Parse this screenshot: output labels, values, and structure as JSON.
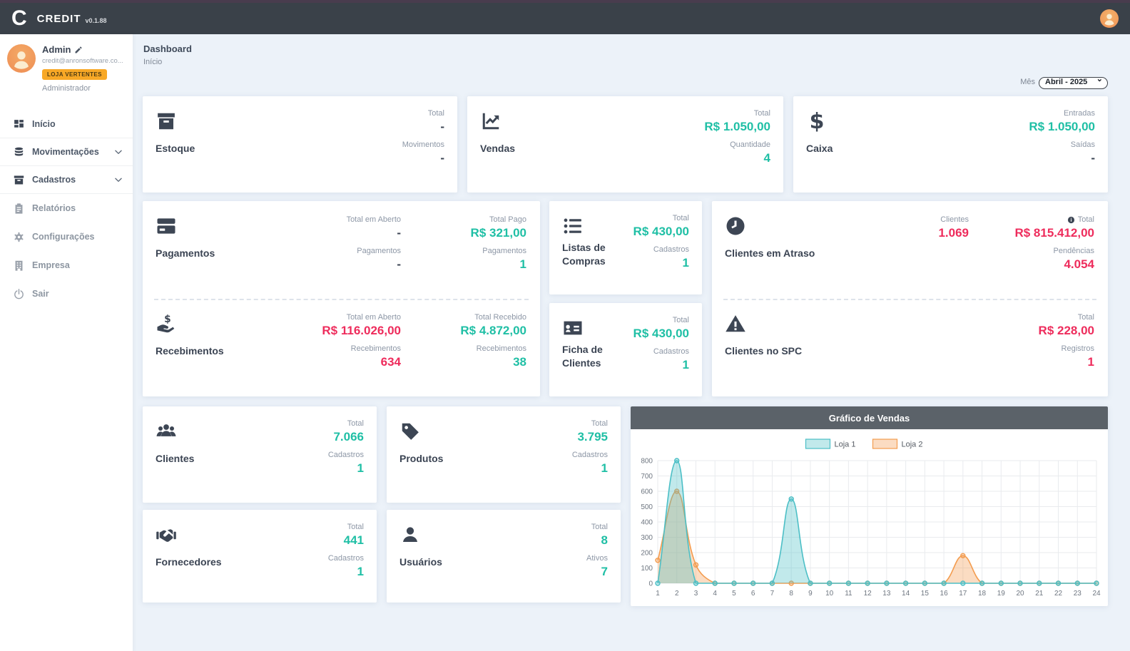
{
  "topbar": {
    "logo_letter": "C",
    "brand": "CREDIT",
    "version": "v0.1.88"
  },
  "user": {
    "name": "Admin",
    "email": "credit@anronsoftware.co...",
    "store_badge": "LOJA VERTENTES",
    "role": "Administrador"
  },
  "sidebar": {
    "items": [
      {
        "id": "inicio",
        "label": "Início",
        "icon": "grid-icon",
        "expandable": false,
        "muted": false
      },
      {
        "id": "movimentacoes",
        "label": "Movimentações",
        "icon": "database-icon",
        "expandable": true,
        "muted": false
      },
      {
        "id": "cadastros",
        "label": "Cadastros",
        "icon": "archive-icon",
        "expandable": true,
        "muted": false
      },
      {
        "id": "relatorios",
        "label": "Relatórios",
        "icon": "clipboard-icon",
        "expandable": false,
        "muted": true
      },
      {
        "id": "configuracoes",
        "label": "Configurações",
        "icon": "gear-icon",
        "expandable": false,
        "muted": true
      },
      {
        "id": "empresa",
        "label": "Empresa",
        "icon": "building-icon",
        "expandable": false,
        "muted": true
      },
      {
        "id": "sair",
        "label": "Sair",
        "icon": "power-icon",
        "expandable": false,
        "muted": true
      }
    ]
  },
  "header": {
    "title": "Dashboard",
    "breadcrumb": "Início"
  },
  "filters": {
    "month_label": "Mês",
    "month_value": "Abril - 2025"
  },
  "colors": {
    "green": "#1fbfa5",
    "red": "#ee2c5c",
    "badge_orange": "#f8a826",
    "loja1": "#4cbfc6",
    "loja2": "#f39c4f"
  },
  "cards": {
    "estoque": {
      "title": "Estoque",
      "icon": "box-icon",
      "stats": [
        {
          "label": "Total",
          "value": "-"
        },
        {
          "label": "Movimentos",
          "value": "-"
        }
      ]
    },
    "vendas": {
      "title": "Vendas",
      "icon": "chart-line-icon",
      "stats": [
        {
          "label": "Total",
          "value": "R$ 1.050,00"
        },
        {
          "label": "Quantidade",
          "value": "4"
        }
      ]
    },
    "caixa": {
      "title": "Caixa",
      "icon": "dollar-icon",
      "stats": [
        {
          "label": "Entradas",
          "value": "R$ 1.050,00"
        },
        {
          "label": "Saídas",
          "value": "-"
        }
      ]
    },
    "pagamentos": {
      "title": "Pagamentos",
      "icon": "credit-card-icon",
      "cols": [
        [
          {
            "label": "Total em Aberto",
            "value": "-"
          },
          {
            "label": "Pagamentos",
            "value": "-"
          }
        ],
        [
          {
            "label": "Total Pago",
            "value": "R$ 321,00"
          },
          {
            "label": "Pagamentos",
            "value": "1"
          }
        ]
      ]
    },
    "recebimentos": {
      "title": "Recebimentos",
      "icon": "hand-dollar-icon",
      "cols": [
        [
          {
            "label": "Total em Aberto",
            "value": "R$ 116.026,00"
          },
          {
            "label": "Recebimentos",
            "value": "634"
          }
        ],
        [
          {
            "label": "Total Recebido",
            "value": "R$ 4.872,00"
          },
          {
            "label": "Recebimentos",
            "value": "38"
          }
        ]
      ]
    },
    "listas": {
      "title": "Listas de Compras",
      "icon": "list-icon",
      "stats": [
        {
          "label": "Total",
          "value": "R$ 430,00"
        },
        {
          "label": "Cadastros",
          "value": "1"
        }
      ]
    },
    "ficha": {
      "title": "Ficha de Clientes",
      "icon": "id-card-icon",
      "stats": [
        {
          "label": "Total",
          "value": "R$ 430,00"
        },
        {
          "label": "Cadastros",
          "value": "1"
        }
      ]
    },
    "atraso": {
      "title": "Clientes em Atraso",
      "icon": "clock-icon",
      "cols": [
        [
          {
            "label": "Clientes",
            "value": "1.069"
          }
        ],
        [
          {
            "label": "Total",
            "value": "R$ 815.412,00"
          },
          {
            "label": "Pendências",
            "value": "4.054"
          }
        ]
      ]
    },
    "spc": {
      "title": "Clientes no SPC",
      "icon": "warning-icon",
      "cols": [
        [],
        [
          {
            "label": "Total",
            "value": "R$ 228,00"
          },
          {
            "label": "Registros",
            "value": "1"
          }
        ]
      ]
    },
    "clientes": {
      "title": "Clientes",
      "icon": "users-icon",
      "stats": [
        {
          "label": "Total",
          "value": "7.066"
        },
        {
          "label": "Cadastros",
          "value": "1"
        }
      ]
    },
    "produtos": {
      "title": "Produtos",
      "icon": "tag-icon",
      "stats": [
        {
          "label": "Total",
          "value": "3.795"
        },
        {
          "label": "Cadastros",
          "value": "1"
        }
      ]
    },
    "fornecedores": {
      "title": "Fornecedores",
      "icon": "handshake-icon",
      "stats": [
        {
          "label": "Total",
          "value": "441"
        },
        {
          "label": "Cadastros",
          "value": "1"
        }
      ]
    },
    "usuarios": {
      "title": "Usuários",
      "icon": "user-icon",
      "stats": [
        {
          "label": "Total",
          "value": "8"
        },
        {
          "label": "Ativos",
          "value": "7"
        }
      ]
    }
  },
  "chart_data": {
    "type": "area",
    "title": "Gráfico de Vendas",
    "x": [
      1,
      2,
      3,
      4,
      5,
      6,
      7,
      8,
      9,
      10,
      11,
      12,
      13,
      14,
      15,
      16,
      17,
      18,
      19,
      20,
      21,
      22,
      23,
      24
    ],
    "series": [
      {
        "name": "Loja 1",
        "color": "#4cbfc6",
        "fill": "rgba(76,191,198,0.35)",
        "values": [
          0,
          800,
          0,
          0,
          0,
          0,
          0,
          550,
          0,
          0,
          0,
          0,
          0,
          0,
          0,
          0,
          0,
          0,
          0,
          0,
          0,
          0,
          0,
          0
        ]
      },
      {
        "name": "Loja 2",
        "color": "#f39c4f",
        "fill": "rgba(243,156,79,0.35)",
        "values": [
          150,
          600,
          120,
          0,
          0,
          0,
          0,
          0,
          0,
          0,
          0,
          0,
          0,
          0,
          0,
          0,
          180,
          0,
          0,
          0,
          0,
          0,
          0,
          0
        ]
      }
    ],
    "ylim": [
      0,
      800
    ],
    "ytick_step": 100,
    "grid": true,
    "legend_position": "top"
  }
}
